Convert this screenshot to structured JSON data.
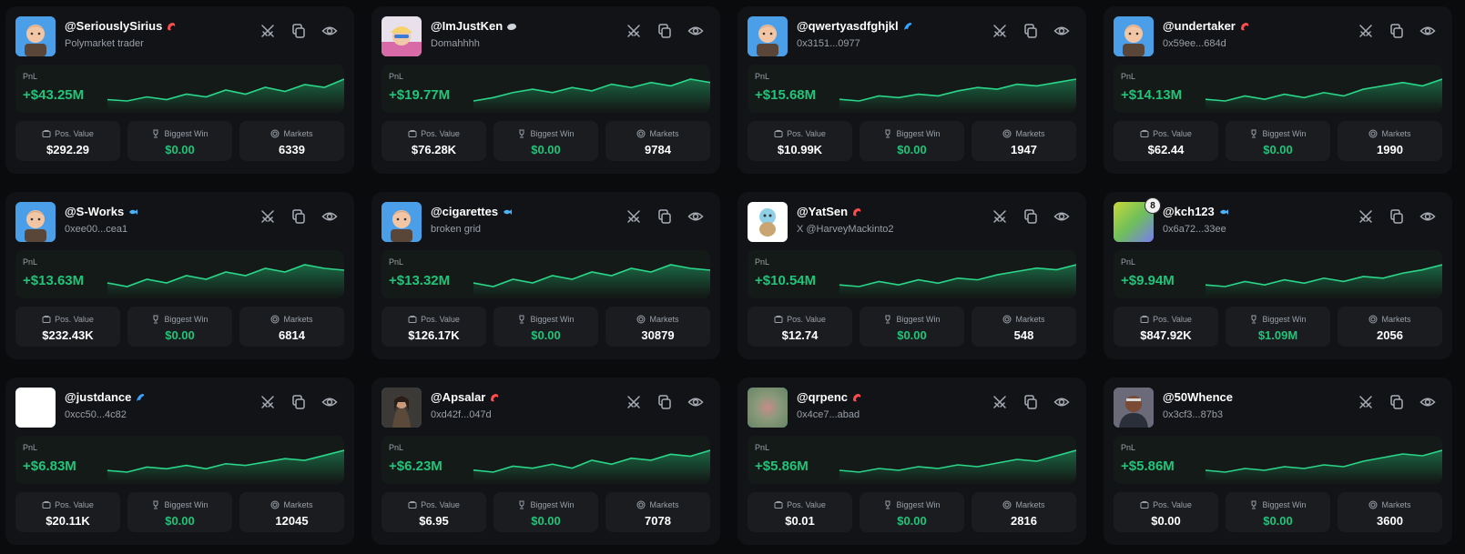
{
  "labels": {
    "pnl": "PnL",
    "pos_value": "Pos. Value",
    "biggest_win": "Biggest Win",
    "markets": "Markets"
  },
  "colors": {
    "background": "#0a0b0d",
    "card": "#121316",
    "accent_green": "#21c47a",
    "text_muted": "#9aa0a8"
  },
  "action_icons": [
    "swords-icon",
    "copy-icon",
    "eye-icon"
  ],
  "traders": [
    {
      "username": "@SeriouslySirius",
      "subtitle": "Polymarket trader",
      "tag": "shrimp",
      "avatar": "memoji",
      "pnl": "+$43.25M",
      "pos_value": "$292.29",
      "biggest_win": "$0.00",
      "markets": "6339",
      "spark": [
        3,
        2,
        5,
        3,
        7,
        5,
        10,
        7,
        12,
        9,
        14,
        12,
        18
      ]
    },
    {
      "username": "@ImJustKen",
      "subtitle": "Domahhhh",
      "tag": "whale",
      "avatar": "photo-pink",
      "pnl": "+$19.77M",
      "pos_value": "$76.28K",
      "biggest_win": "$0.00",
      "markets": "9784",
      "spark": [
        2,
        4,
        7,
        9,
        7,
        10,
        8,
        12,
        10,
        13,
        11,
        15,
        13
      ]
    },
    {
      "username": "@qwertyasdfghjkl",
      "subtitle": "0x3151...0977",
      "tag": "dolphin",
      "avatar": "memoji",
      "pnl": "+$15.68M",
      "pos_value": "$10.99K",
      "biggest_win": "$0.00",
      "markets": "1947",
      "spark": [
        2,
        1,
        4,
        3,
        5,
        4,
        7,
        9,
        8,
        11,
        10,
        12,
        14
      ]
    },
    {
      "username": "@undertaker",
      "subtitle": "0x59ee...684d",
      "tag": "shrimp",
      "avatar": "memoji",
      "pnl": "+$14.13M",
      "pos_value": "$62.44",
      "biggest_win": "$0.00",
      "markets": "1990",
      "spark": [
        3,
        2,
        5,
        3,
        6,
        4,
        7,
        5,
        9,
        11,
        13,
        11,
        15
      ]
    },
    {
      "username": "@S-Works",
      "subtitle": "0xee00...cea1",
      "tag": "fish",
      "avatar": "memoji",
      "pnl": "+$13.63M",
      "pos_value": "$232.43K",
      "biggest_win": "$0.00",
      "markets": "6814",
      "spark": [
        4,
        2,
        6,
        4,
        8,
        6,
        10,
        8,
        12,
        10,
        14,
        12,
        11
      ]
    },
    {
      "username": "@cigarettes",
      "subtitle": "broken grid",
      "tag": "fish",
      "avatar": "memoji",
      "pnl": "+$13.32M",
      "pos_value": "$126.17K",
      "biggest_win": "$0.00",
      "markets": "30879",
      "spark": [
        4,
        2,
        6,
        4,
        8,
        6,
        10,
        8,
        12,
        10,
        14,
        12,
        11
      ]
    },
    {
      "username": "@YatSen",
      "subtitle": "X @HarveyMackinto2",
      "tag": "shrimp",
      "avatar": "squirtle",
      "pnl": "+$10.54M",
      "pos_value": "$12.74",
      "biggest_win": "$0.00",
      "markets": "548",
      "spark": [
        3,
        2,
        5,
        3,
        6,
        4,
        7,
        6,
        9,
        11,
        13,
        12,
        15
      ]
    },
    {
      "username": "@kch123",
      "subtitle": "0x6a72...33ee",
      "tag": "fish",
      "avatar": "gradient",
      "badge": "8",
      "pnl": "+$9.94M",
      "pos_value": "$847.92K",
      "biggest_win": "$1.09M",
      "markets": "2056",
      "spark": [
        3,
        2,
        5,
        3,
        6,
        4,
        7,
        5,
        8,
        7,
        10,
        12,
        15
      ]
    },
    {
      "username": "@justdance",
      "subtitle": "0xcc50...4c82",
      "tag": "dolphin",
      "avatar": "blank",
      "pnl": "+$6.83M",
      "pos_value": "$20.11K",
      "biggest_win": "$0.00",
      "markets": "12045",
      "spark": [
        3,
        2,
        5,
        4,
        6,
        4,
        7,
        6,
        8,
        10,
        9,
        12,
        15
      ]
    },
    {
      "username": "@Apsalar",
      "subtitle": "0xd42f...047d",
      "tag": "shrimp",
      "avatar": "photo-dark",
      "pnl": "+$6.23M",
      "pos_value": "$6.95",
      "biggest_win": "$0.00",
      "markets": "7078",
      "spark": [
        3,
        2,
        5,
        4,
        6,
        4,
        8,
        6,
        9,
        8,
        11,
        10,
        13
      ]
    },
    {
      "username": "@qrpenc",
      "subtitle": "0x4ce7...abad",
      "tag": "shrimp",
      "avatar": "blur",
      "pnl": "+$5.86M",
      "pos_value": "$0.01",
      "biggest_win": "$0.00",
      "markets": "2816",
      "spark": [
        3,
        2,
        4,
        3,
        5,
        4,
        6,
        5,
        7,
        9,
        8,
        11,
        14
      ]
    },
    {
      "username": "@50Whence",
      "subtitle": "0x3cf3...87b3",
      "tag": "",
      "avatar": "photo-man",
      "pnl": "+$5.86M",
      "pos_value": "$0.00",
      "biggest_win": "$0.00",
      "markets": "3600",
      "spark": [
        3,
        2,
        4,
        3,
        5,
        4,
        6,
        5,
        8,
        10,
        12,
        11,
        14
      ]
    }
  ]
}
